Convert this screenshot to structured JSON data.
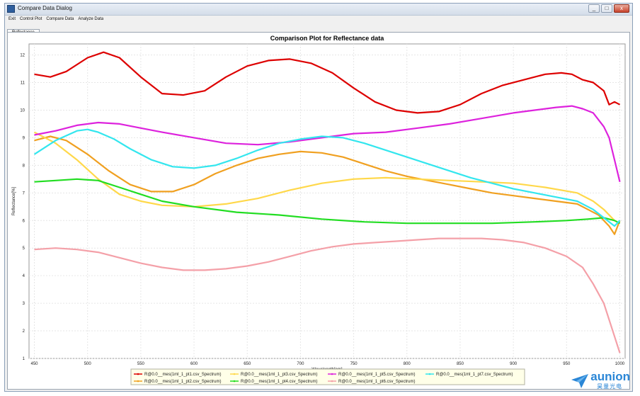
{
  "window": {
    "title": "Compare Data Dialog",
    "min": "_",
    "max": "□",
    "close": "x"
  },
  "menu": [
    "Exit",
    "Control Plot",
    "Compare Data",
    "Analyze Data"
  ],
  "tab": "Reflectance",
  "chart_data": {
    "type": "line",
    "title": "Comparison Plot for Reflectance data",
    "xlabel": "Wavelength[nm]",
    "ylabel": "Reflectance[%]",
    "xlim": [
      445,
      1005
    ],
    "ylim": [
      1,
      12.4
    ],
    "xticks": [
      450,
      500,
      550,
      600,
      650,
      700,
      750,
      800,
      850,
      900,
      950,
      1000
    ],
    "yticks": [
      1,
      2,
      3,
      4,
      5,
      6,
      7,
      8,
      9,
      10,
      11,
      12
    ],
    "grid": true,
    "legend_position": "bottom",
    "series": [
      {
        "name": "R@0.0__mes(1ml_1_pt1.csv_Spectrum)",
        "color": "#dd0000",
        "x": [
          450,
          465,
          480,
          500,
          515,
          530,
          550,
          570,
          590,
          610,
          630,
          650,
          670,
          690,
          710,
          730,
          750,
          770,
          790,
          810,
          830,
          850,
          870,
          890,
          910,
          930,
          945,
          955,
          965,
          975,
          985,
          990,
          995,
          1000
        ],
        "y": [
          11.3,
          11.2,
          11.4,
          11.9,
          12.1,
          11.9,
          11.2,
          10.6,
          10.55,
          10.7,
          11.2,
          11.6,
          11.8,
          11.85,
          11.7,
          11.35,
          10.8,
          10.3,
          10.0,
          9.9,
          9.95,
          10.2,
          10.6,
          10.9,
          11.1,
          11.3,
          11.35,
          11.3,
          11.1,
          11.0,
          10.7,
          10.2,
          10.3,
          10.2
        ]
      },
      {
        "name": "R@0.0__mes(1ml_1_pt2.csv_Spectrum)",
        "color": "#f0a020",
        "x": [
          450,
          465,
          480,
          500,
          520,
          540,
          560,
          580,
          600,
          620,
          640,
          660,
          680,
          700,
          720,
          740,
          760,
          780,
          800,
          820,
          840,
          860,
          880,
          900,
          920,
          940,
          960,
          970,
          980,
          990,
          995,
          1000
        ],
        "y": [
          8.9,
          9.05,
          8.9,
          8.4,
          7.8,
          7.3,
          7.05,
          7.05,
          7.3,
          7.7,
          8.0,
          8.25,
          8.4,
          8.5,
          8.45,
          8.3,
          8.05,
          7.8,
          7.6,
          7.45,
          7.3,
          7.15,
          7.0,
          6.9,
          6.8,
          6.7,
          6.6,
          6.4,
          6.2,
          5.8,
          5.5,
          6.0
        ]
      },
      {
        "name": "R@0.0__mes(1ml_1_pt3.csv_Spectrum)",
        "color": "#ffd84a",
        "x": [
          450,
          470,
          490,
          510,
          530,
          550,
          570,
          600,
          630,
          660,
          690,
          720,
          750,
          780,
          810,
          840,
          870,
          900,
          930,
          960,
          975,
          985,
          995,
          1000
        ],
        "y": [
          9.2,
          8.8,
          8.2,
          7.5,
          6.95,
          6.7,
          6.55,
          6.5,
          6.6,
          6.8,
          7.1,
          7.35,
          7.5,
          7.55,
          7.5,
          7.45,
          7.4,
          7.35,
          7.2,
          7.0,
          6.7,
          6.4,
          6.0,
          5.9
        ]
      },
      {
        "name": "R@0.0__mes(1ml_1_pt4.csv_Spectrum)",
        "color": "#22dd22",
        "x": [
          450,
          470,
          490,
          510,
          530,
          550,
          570,
          600,
          640,
          680,
          720,
          760,
          800,
          840,
          880,
          920,
          950,
          970,
          985,
          995,
          1000
        ],
        "y": [
          7.4,
          7.45,
          7.5,
          7.45,
          7.2,
          6.95,
          6.7,
          6.5,
          6.3,
          6.2,
          6.05,
          5.95,
          5.9,
          5.9,
          5.9,
          5.95,
          6.0,
          6.05,
          6.1,
          6.0,
          5.9
        ]
      },
      {
        "name": "R@0.0__mes(1ml_1_pt5.csv_Spectrum)",
        "color": "#dd22dd",
        "x": [
          450,
          470,
          490,
          510,
          530,
          550,
          570,
          600,
          630,
          660,
          690,
          720,
          750,
          780,
          810,
          840,
          870,
          900,
          920,
          940,
          955,
          965,
          975,
          985,
          990,
          995,
          1000
        ],
        "y": [
          9.1,
          9.25,
          9.45,
          9.55,
          9.5,
          9.35,
          9.2,
          9.0,
          8.8,
          8.75,
          8.85,
          9.0,
          9.15,
          9.2,
          9.35,
          9.5,
          9.7,
          9.9,
          10.0,
          10.1,
          10.15,
          10.05,
          9.9,
          9.4,
          9.0,
          8.2,
          7.4
        ]
      },
      {
        "name": "R@0.0__mes(1ml_1_pt6.csv_Spectrum)",
        "color": "#f4a0a8",
        "x": [
          450,
          470,
          490,
          510,
          530,
          550,
          570,
          590,
          610,
          630,
          650,
          670,
          690,
          710,
          730,
          750,
          770,
          790,
          810,
          830,
          850,
          870,
          890,
          910,
          930,
          950,
          965,
          975,
          985,
          995,
          1000
        ],
        "y": [
          4.95,
          5.0,
          4.95,
          4.85,
          4.65,
          4.45,
          4.3,
          4.2,
          4.2,
          4.25,
          4.35,
          4.5,
          4.7,
          4.9,
          5.05,
          5.15,
          5.2,
          5.25,
          5.3,
          5.35,
          5.35,
          5.35,
          5.3,
          5.2,
          5.0,
          4.7,
          4.3,
          3.7,
          3.0,
          1.8,
          1.2
        ]
      },
      {
        "name": "R@0.0__mes(1ml_1_pt7.csv_Spectrum)",
        "color": "#33e6ee",
        "x": [
          450,
          470,
          490,
          500,
          510,
          525,
          540,
          560,
          580,
          600,
          620,
          640,
          660,
          680,
          700,
          720,
          740,
          760,
          780,
          800,
          820,
          840,
          860,
          880,
          900,
          920,
          940,
          960,
          975,
          985,
          995,
          1000
        ],
        "y": [
          8.4,
          8.9,
          9.25,
          9.3,
          9.2,
          8.95,
          8.6,
          8.2,
          7.95,
          7.9,
          8.0,
          8.25,
          8.55,
          8.8,
          8.95,
          9.05,
          9.0,
          8.8,
          8.55,
          8.3,
          8.05,
          7.8,
          7.55,
          7.35,
          7.15,
          7.0,
          6.85,
          6.7,
          6.4,
          6.1,
          5.8,
          6.0
        ]
      }
    ],
    "legend_entries": [
      {
        "label": "R@0.0__mes(1ml_1_pt1.csv_Spectrum)",
        "color": "#dd0000"
      },
      {
        "label": "R@0.0__mes(1ml_1_pt3.csv_Spectrum)",
        "color": "#ffd84a"
      },
      {
        "label": "R@0.0__mes(1ml_1_pt5.csv_Spectrum)",
        "color": "#dd22dd"
      },
      {
        "label": "R@0.0__mes(1ml_1_pt7.csv_Spectrum)",
        "color": "#33e6ee"
      },
      {
        "label": "R@0.0__mes(1ml_1_pt2.csv_Spectrum)",
        "color": "#f0a020"
      },
      {
        "label": "R@0.0__mes(1ml_1_pt4.csv_Spectrum)",
        "color": "#22dd22"
      },
      {
        "label": "R@0.0__mes(1ml_1_pt6.csv_Spectrum)",
        "color": "#f4a0a8"
      }
    ]
  },
  "watermark": {
    "brand": "aunion",
    "sub": "昊量光电"
  }
}
